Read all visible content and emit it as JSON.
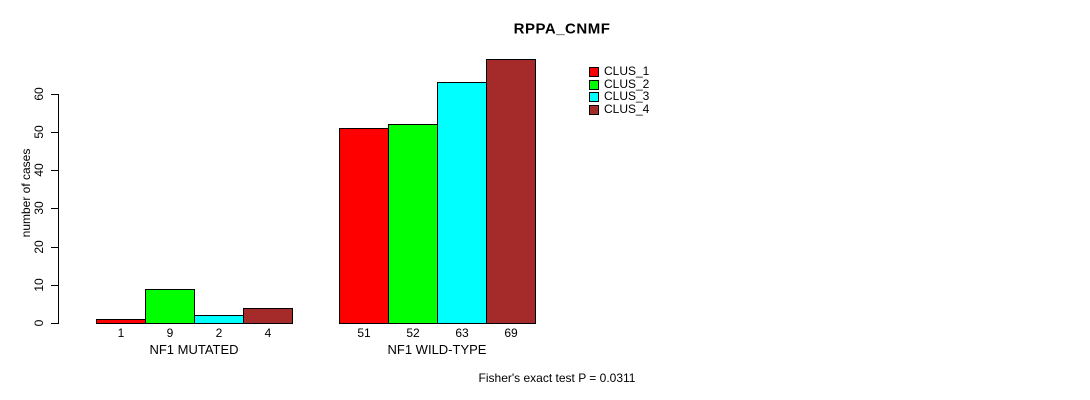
{
  "chart_data": {
    "type": "bar",
    "title": "RPPA_CNMF",
    "ylabel": "number of cases",
    "xlabel": "",
    "categories": [
      "NF1 MUTATED",
      "NF1 WILD-TYPE"
    ],
    "series": [
      {
        "name": "CLUS_1",
        "color": "#FF0000",
        "values": [
          1,
          51
        ]
      },
      {
        "name": "CLUS_2",
        "color": "#00FF00",
        "values": [
          9,
          52
        ]
      },
      {
        "name": "CLUS_3",
        "color": "#00FFFF",
        "values": [
          2,
          63
        ]
      },
      {
        "name": "CLUS_4",
        "color": "#A52A2A",
        "values": [
          4,
          69
        ]
      }
    ],
    "yticks": [
      0,
      10,
      20,
      30,
      40,
      50,
      60
    ],
    "ylim": [
      0,
      69
    ],
    "bar_border_color": "#000000",
    "show_values_under_bars": true,
    "grid": false,
    "legend": {
      "position": "top-right",
      "entries": [
        "CLUS_1",
        "CLUS_2",
        "CLUS_3",
        "CLUS_4"
      ]
    },
    "annotation": "Fisher's exact test P = 0.0311"
  }
}
